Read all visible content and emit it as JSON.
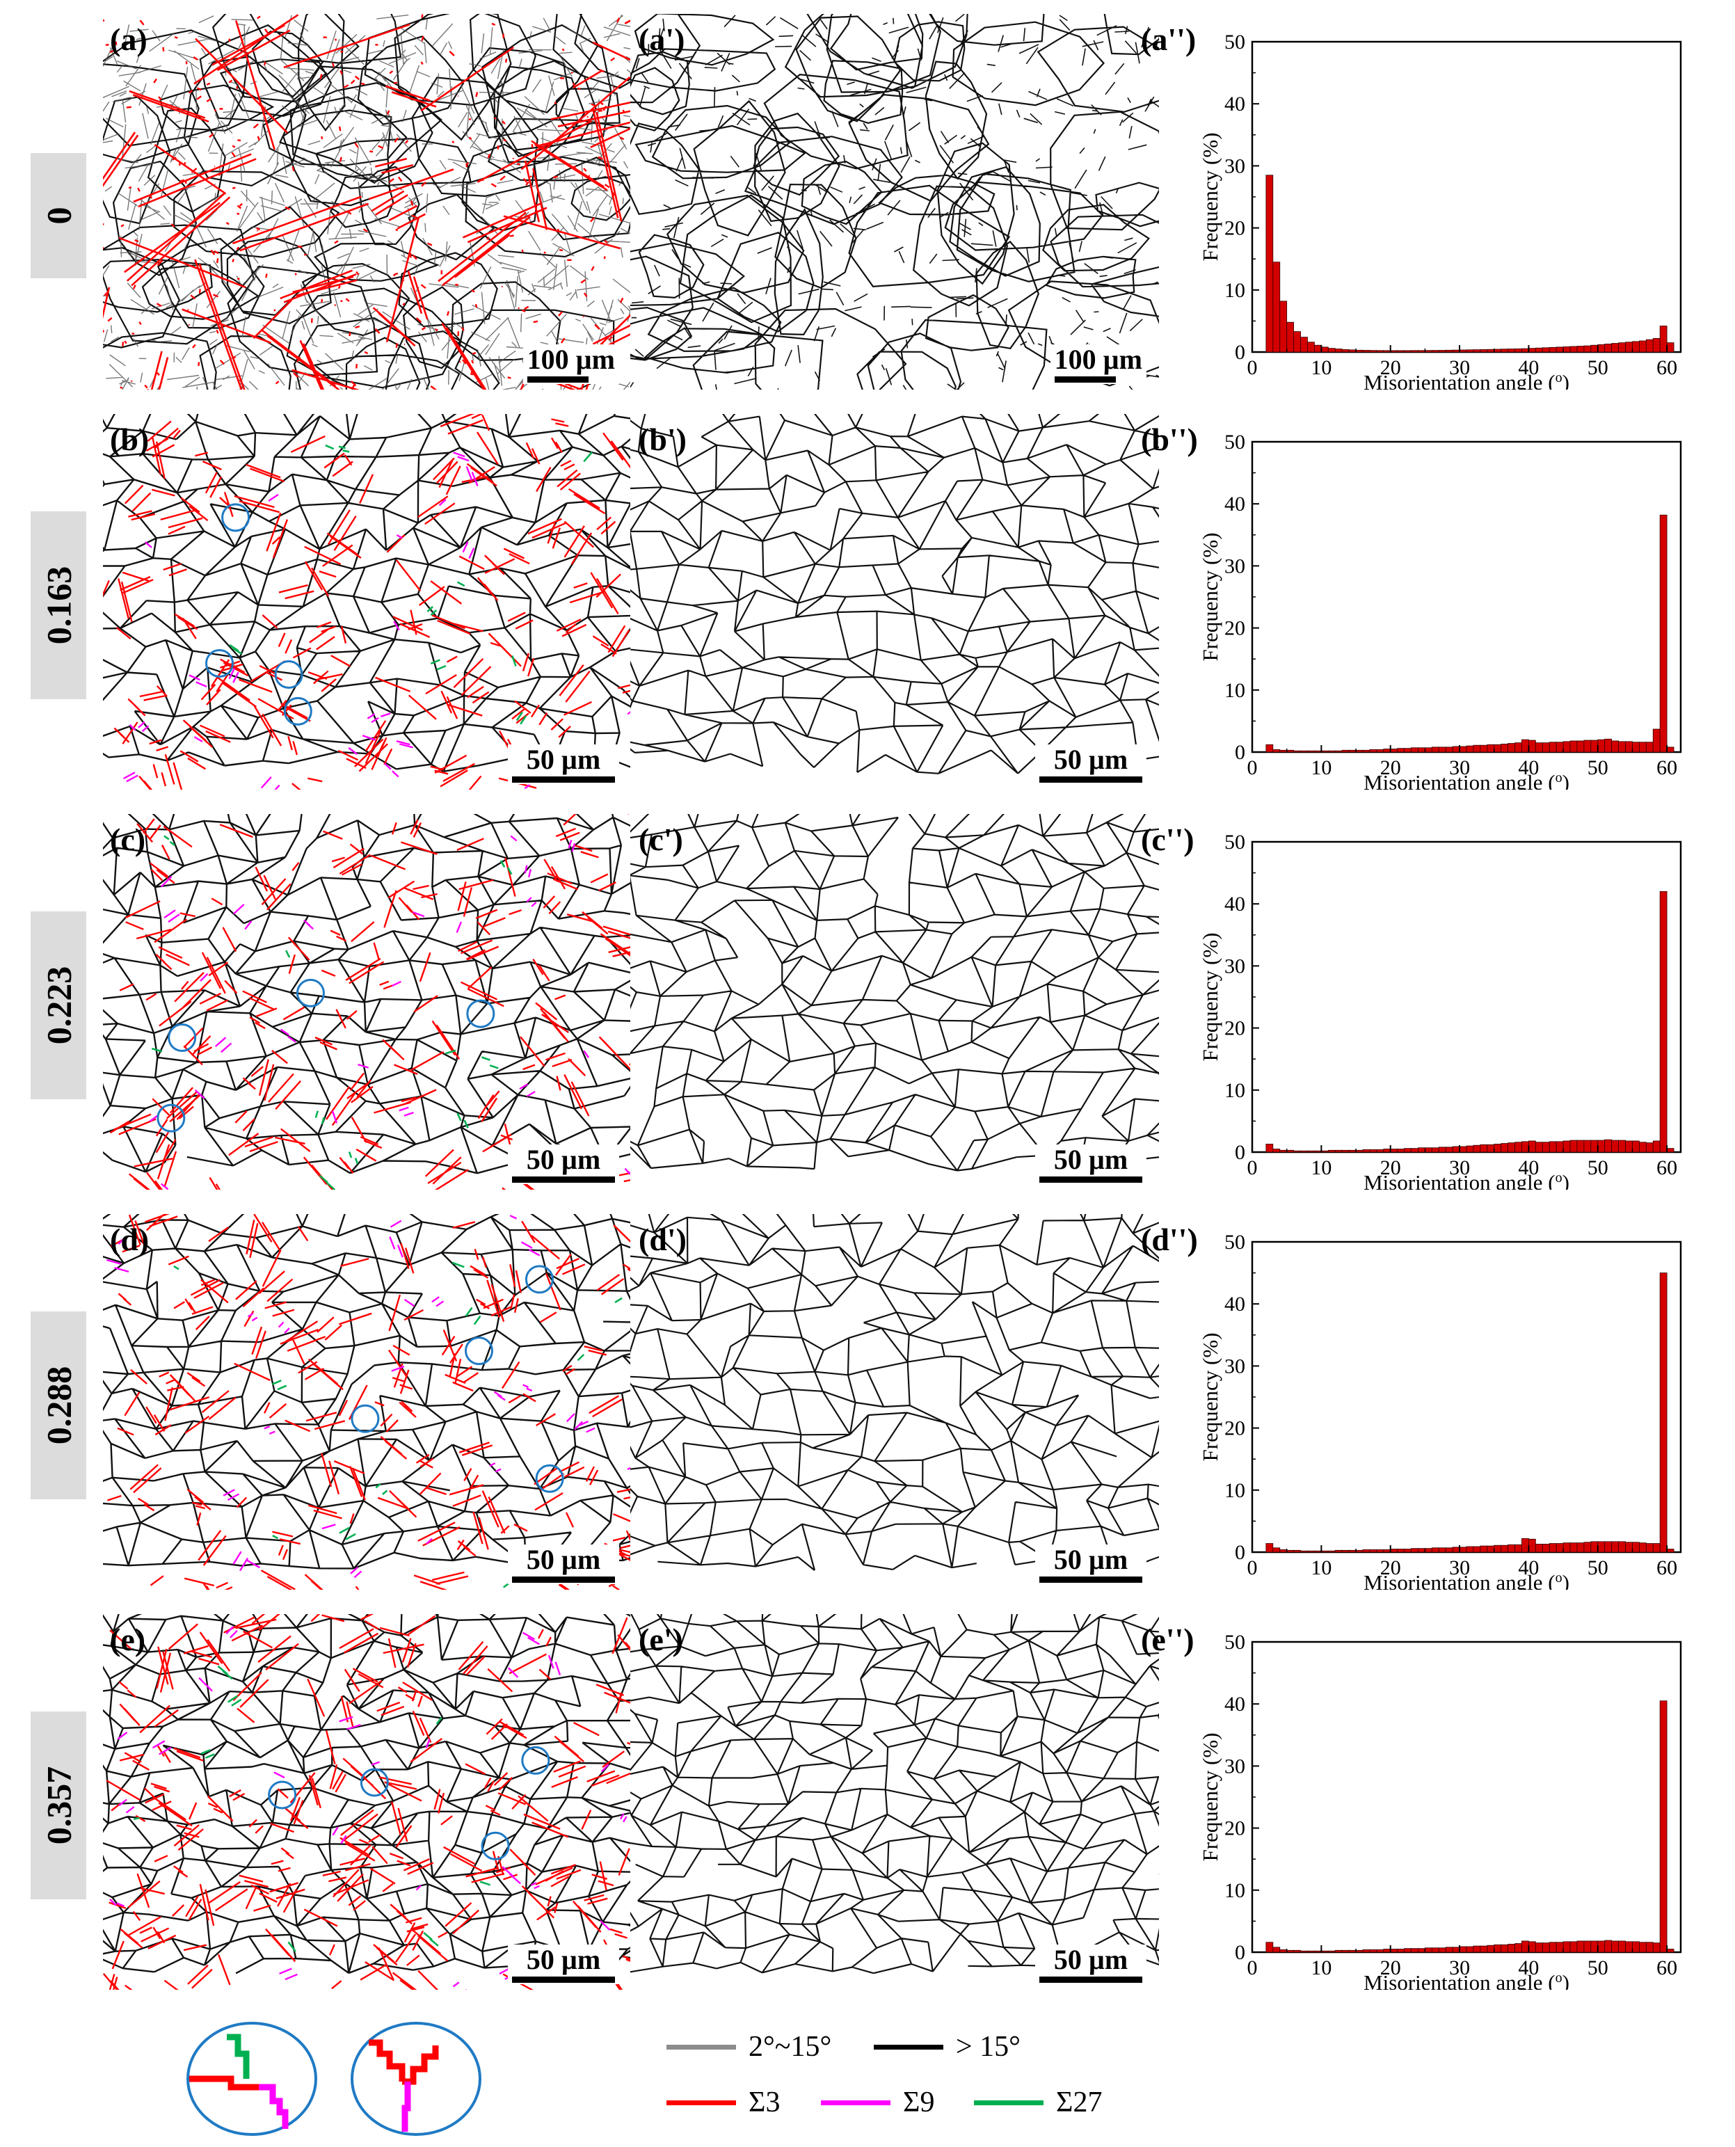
{
  "rows": [
    {
      "side": "0",
      "labels": [
        "(a)",
        "(a')",
        "(a'')"
      ],
      "scale": "100 µm",
      "dense": 0,
      "hist": [
        0,
        0,
        28.5,
        14.5,
        8.2,
        4.8,
        3.3,
        2.4,
        1.6,
        1.1,
        0.8,
        0.6,
        0.5,
        0.4,
        0.35,
        0.3,
        0.28,
        0.26,
        0.25,
        0.24,
        0.24,
        0.24,
        0.24,
        0.25,
        0.25,
        0.26,
        0.27,
        0.28,
        0.3,
        0.32,
        0.34,
        0.36,
        0.38,
        0.4,
        0.42,
        0.45,
        0.48,
        0.5,
        0.52,
        0.55,
        0.6,
        0.65,
        0.7,
        0.75,
        0.8,
        0.85,
        0.9,
        0.95,
        1.0,
        1.1,
        1.2,
        1.3,
        1.4,
        1.5,
        1.6,
        1.7,
        1.8,
        2.0,
        2.2,
        4.2,
        1.5
      ]
    },
    {
      "side": "0.163",
      "labels": [
        "(b)",
        "(b')",
        "(b'')"
      ],
      "scale": "50 µm",
      "dense": 1,
      "hist": [
        0,
        0,
        1.2,
        0.4,
        0.3,
        0.3,
        0.2,
        0.2,
        0.2,
        0.2,
        0.2,
        0.2,
        0.2,
        0.3,
        0.3,
        0.3,
        0.3,
        0.4,
        0.4,
        0.5,
        0.5,
        0.6,
        0.6,
        0.7,
        0.7,
        0.7,
        0.8,
        0.8,
        0.8,
        0.9,
        0.9,
        1.0,
        1.1,
        1.1,
        1.2,
        1.2,
        1.3,
        1.4,
        1.5,
        2.0,
        1.9,
        1.5,
        1.5,
        1.6,
        1.6,
        1.7,
        1.8,
        1.8,
        1.9,
        1.9,
        2.0,
        2.1,
        1.8,
        1.7,
        1.7,
        1.6,
        1.6,
        1.6,
        3.7,
        38.2,
        0.8
      ]
    },
    {
      "side": "0.223",
      "labels": [
        "(c)",
        "(c')",
        "(c'')"
      ],
      "scale": "50 µm",
      "dense": 1,
      "hist": [
        0,
        0,
        1.3,
        0.5,
        0.3,
        0.3,
        0.2,
        0.2,
        0.2,
        0.2,
        0.2,
        0.3,
        0.3,
        0.3,
        0.3,
        0.3,
        0.4,
        0.4,
        0.4,
        0.5,
        0.5,
        0.5,
        0.6,
        0.6,
        0.7,
        0.7,
        0.7,
        0.8,
        0.8,
        0.9,
        0.9,
        1.0,
        1.1,
        1.2,
        1.2,
        1.3,
        1.4,
        1.5,
        1.6,
        1.7,
        1.8,
        1.6,
        1.6,
        1.7,
        1.7,
        1.8,
        1.9,
        1.9,
        1.9,
        1.9,
        1.9,
        2.0,
        1.9,
        1.9,
        1.8,
        1.8,
        1.6,
        1.5,
        1.8,
        42.0,
        0.6
      ]
    },
    {
      "side": "0.288",
      "labels": [
        "(d)",
        "(d')",
        "(d'')"
      ],
      "scale": "50 µm",
      "dense": 1,
      "hist": [
        0,
        0,
        1.4,
        0.7,
        0.4,
        0.3,
        0.3,
        0.2,
        0.2,
        0.2,
        0.2,
        0.2,
        0.3,
        0.3,
        0.3,
        0.3,
        0.4,
        0.4,
        0.4,
        0.4,
        0.5,
        0.5,
        0.5,
        0.6,
        0.6,
        0.6,
        0.7,
        0.7,
        0.7,
        0.8,
        0.8,
        0.9,
        0.9,
        1.0,
        1.0,
        1.1,
        1.1,
        1.2,
        1.2,
        2.2,
        2.1,
        1.3,
        1.3,
        1.4,
        1.4,
        1.5,
        1.5,
        1.5,
        1.6,
        1.7,
        1.7,
        1.7,
        1.7,
        1.7,
        1.6,
        1.6,
        1.5,
        1.4,
        1.4,
        45.0,
        0.5
      ]
    },
    {
      "side": "0.357",
      "labels": [
        "(e)",
        "(e')",
        "(e'')"
      ],
      "scale": "50 µm",
      "dense": 2,
      "hist": [
        0,
        0,
        1.6,
        0.8,
        0.4,
        0.3,
        0.3,
        0.2,
        0.2,
        0.2,
        0.2,
        0.2,
        0.3,
        0.3,
        0.3,
        0.3,
        0.4,
        0.4,
        0.4,
        0.5,
        0.5,
        0.5,
        0.6,
        0.6,
        0.6,
        0.7,
        0.7,
        0.7,
        0.8,
        0.8,
        0.9,
        0.9,
        1.0,
        1.0,
        1.1,
        1.2,
        1.2,
        1.3,
        1.4,
        1.8,
        1.7,
        1.5,
        1.5,
        1.6,
        1.6,
        1.7,
        1.7,
        1.8,
        1.8,
        1.8,
        1.8,
        1.9,
        1.8,
        1.8,
        1.7,
        1.7,
        1.6,
        1.6,
        1.5,
        40.5,
        0.5
      ]
    }
  ],
  "chart_data": {
    "type": "bar",
    "title": "",
    "xlabel": "Misorientation angle (o)",
    "ylabel": "Frequency (%)",
    "xlim": [
      0,
      62
    ],
    "ylim": [
      0,
      50
    ],
    "xticks": [
      "0",
      "10",
      "20",
      "30",
      "40",
      "50",
      "60"
    ],
    "yticks": [
      "0",
      "10",
      "20",
      "30",
      "40",
      "50"
    ],
    "bin_width": 1,
    "series": [
      "(a'')",
      "(b'')",
      "(c'')",
      "(d'')",
      "(e'')"
    ],
    "note": "per-panel histogram values stored in rows[i].hist (bin i = [i, i+1) degrees)"
  },
  "legend": {
    "low_angle": "2°~15°",
    "high_angle": "> 15°",
    "sigma3": "Σ3",
    "sigma9": "Σ9",
    "sigma27": "Σ27"
  },
  "colors": {
    "low_angle": "#8c8c8c",
    "high_angle": "#000000",
    "sigma3": "#ff0000",
    "sigma9": "#ff00ff",
    "sigma27": "#00b050",
    "bar": "#d40000",
    "circle": "#1f7ac4"
  }
}
